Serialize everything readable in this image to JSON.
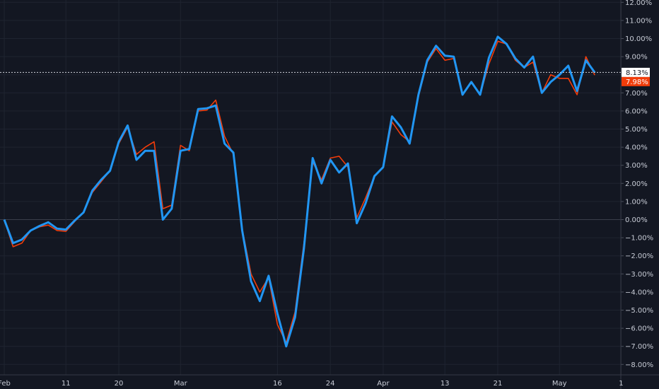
{
  "chart_data": {
    "type": "line",
    "title": "",
    "xlabel": "",
    "ylabel": "",
    "grid": true,
    "legend": "none",
    "ylim": [
      -8.5,
      12.2
    ],
    "y_tick_labels": [
      "12.00%",
      "11.00%",
      "10.00%",
      "9.00%",
      "8.00%",
      "7.00%",
      "6.00%",
      "5.00%",
      "4.00%",
      "3.00%",
      "2.00%",
      "1.00%",
      "0.00%",
      "−1.00%",
      "−2.00%",
      "−3.00%",
      "−4.00%",
      "−5.00%",
      "−6.00%",
      "−7.00%",
      "−8.00%"
    ],
    "y_tick_values": [
      12,
      11,
      10,
      9,
      8,
      7,
      6,
      5,
      4,
      3,
      2,
      1,
      0,
      -1,
      -2,
      -3,
      -4,
      -5,
      -6,
      -7,
      -8
    ],
    "x_tick_labels": [
      "Feb",
      "11",
      "20",
      "Mar",
      "16",
      "24",
      "Apr",
      "13",
      "21",
      "May",
      "1"
    ],
    "x_tick_index": [
      0,
      7,
      13,
      20,
      31,
      37,
      43,
      50,
      56,
      63,
      70
    ],
    "n_points": 70,
    "series": [
      {
        "color": "#2196f3",
        "last_value_label": "8.13%",
        "values": [
          0.0,
          -1.3,
          -1.1,
          -0.6,
          -0.35,
          -0.15,
          -0.5,
          -0.55,
          -0.05,
          0.4,
          1.6,
          2.2,
          2.7,
          4.3,
          5.2,
          3.3,
          3.8,
          3.8,
          0.0,
          0.6,
          3.8,
          3.9,
          6.1,
          6.15,
          6.3,
          4.2,
          3.7,
          -0.6,
          -3.4,
          -4.5,
          -3.1,
          -5.2,
          -7.0,
          -5.4,
          -1.6,
          3.4,
          2.0,
          3.3,
          2.6,
          3.1,
          -0.2,
          0.9,
          2.4,
          2.9,
          5.7,
          5.1,
          4.2,
          6.9,
          8.8,
          9.6,
          9.05,
          9.0,
          6.9,
          7.6,
          6.9,
          8.95,
          10.1,
          9.7,
          8.9,
          8.4,
          9.0,
          7.0,
          7.6,
          8.0,
          8.5,
          7.1,
          8.8,
          8.13
        ]
      },
      {
        "color": "#f23c0a",
        "last_value_label": "7.98%",
        "values": [
          0.0,
          -1.5,
          -1.3,
          -0.6,
          -0.4,
          -0.3,
          -0.6,
          -0.65,
          -0.1,
          0.4,
          1.5,
          2.1,
          2.7,
          4.2,
          5.1,
          3.6,
          4.0,
          4.3,
          0.6,
          0.8,
          4.1,
          3.8,
          6.0,
          6.05,
          6.6,
          4.6,
          3.6,
          -0.5,
          -3.0,
          -4.0,
          -3.2,
          -5.8,
          -6.8,
          -5.1,
          -1.3,
          3.2,
          2.2,
          3.4,
          3.5,
          2.9,
          0.1,
          1.2,
          2.4,
          2.9,
          5.4,
          4.7,
          4.3,
          6.8,
          8.7,
          9.45,
          8.8,
          8.9,
          6.9,
          7.6,
          6.9,
          8.6,
          9.85,
          9.7,
          8.8,
          8.4,
          8.7,
          7.0,
          8.0,
          7.8,
          7.8,
          6.9,
          9.0,
          7.98
        ]
      }
    ]
  }
}
